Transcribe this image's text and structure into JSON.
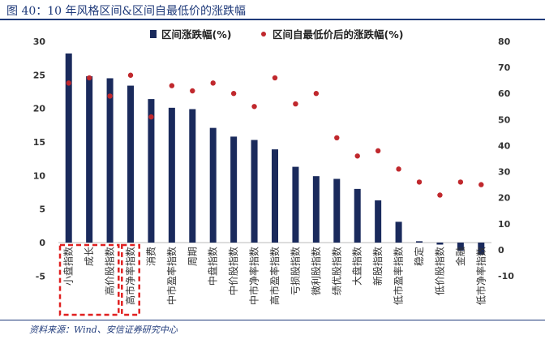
{
  "figure": {
    "title": "图 40：10 年风格区间&区间自最低价的涨跌幅",
    "source": "资料来源：Wind、安信证券研究中心"
  },
  "chart_data": {
    "type": "bar",
    "categories": [
      "小盘指数",
      "成长",
      "高价股指数",
      "高市净率指数",
      "消费",
      "中市盈率指数",
      "周期",
      "中盘指数",
      "中价股指数",
      "中市净率指数",
      "高市盈率指数",
      "亏损股指数",
      "微利股指数",
      "绩优股指数",
      "大盘指数",
      "新股指数",
      "低市盈率指数",
      "稳定",
      "低价股指数",
      "金融",
      "低市净率指数"
    ],
    "series": [
      {
        "name": "区间涨跌幅(%)",
        "type": "bar",
        "axis": "left",
        "color": "#1a2a5c",
        "values": [
          28.2,
          24.8,
          24.5,
          23.4,
          21.4,
          20.1,
          19.9,
          17.1,
          15.8,
          15.3,
          13.9,
          11.3,
          9.9,
          9.5,
          8.0,
          6.3,
          3.1,
          0.2,
          -0.3,
          -1.2,
          -1.8
        ]
      },
      {
        "name": "区间自最低价后的涨跌幅(%)",
        "type": "scatter",
        "axis": "right",
        "color": "#c0282d",
        "values": [
          64,
          66,
          59,
          67,
          51,
          63,
          61,
          64,
          60,
          55,
          66,
          56,
          60,
          43,
          36,
          38,
          31,
          26,
          21,
          26,
          25
        ]
      }
    ],
    "y_left": {
      "min": -5,
      "max": 30,
      "ticks": [
        -5,
        0,
        5,
        10,
        15,
        20,
        25,
        30
      ]
    },
    "y_right": {
      "min": -10,
      "max": 80,
      "ticks": [
        -10,
        0,
        10,
        20,
        30,
        40,
        50,
        60,
        70,
        80
      ]
    },
    "legend_position": "top",
    "highlight_boxes": [
      {
        "from_category": 0,
        "to_category": 2,
        "color": "#e02020"
      },
      {
        "from_category": 3,
        "to_category": 3,
        "color": "#e02020"
      }
    ],
    "grid": false
  }
}
